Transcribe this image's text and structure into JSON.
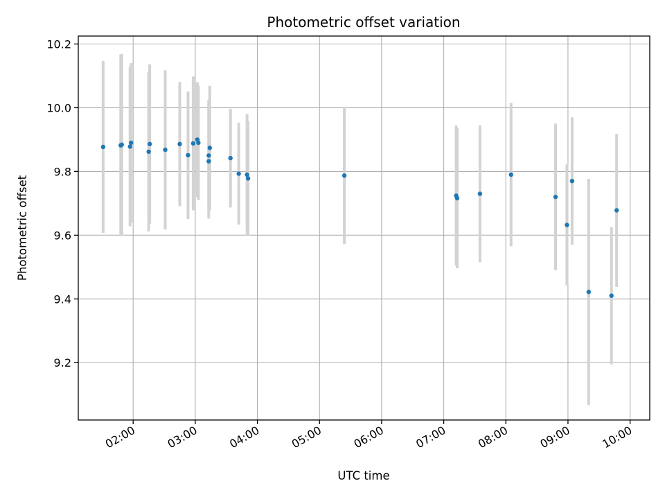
{
  "chart_data": {
    "type": "scatter",
    "title": "Photometric offset variation",
    "xlabel": "UTC time",
    "ylabel": "Photometric offset",
    "xlim": [
      "01:07",
      "10:19"
    ],
    "ylim": [
      9.02,
      10.225
    ],
    "x_ticks": [
      "02:00",
      "03:00",
      "04:00",
      "05:00",
      "06:00",
      "07:00",
      "08:00",
      "09:00",
      "10:00"
    ],
    "y_ticks": [
      9.2,
      9.4,
      9.6,
      9.8,
      10.0,
      10.2
    ],
    "y_tick_labels": [
      "9.2",
      "9.4",
      "9.6",
      "9.8",
      "10.0",
      "10.2"
    ],
    "grid": true,
    "point_color": "#1f77b4",
    "errorbar_color": "#d3d3d3",
    "points": [
      {
        "t": "01:31",
        "y": 9.877,
        "err": 0.27
      },
      {
        "t": "01:48",
        "y": 9.882,
        "err": 0.285
      },
      {
        "t": "01:49",
        "y": 9.884,
        "err": 0.285
      },
      {
        "t": "01:57",
        "y": 9.878,
        "err": 0.25
      },
      {
        "t": "01:58",
        "y": 9.89,
        "err": 0.25
      },
      {
        "t": "02:15",
        "y": 9.862,
        "err": 0.25
      },
      {
        "t": "02:16",
        "y": 9.886,
        "err": 0.25
      },
      {
        "t": "02:31",
        "y": 9.868,
        "err": 0.25
      },
      {
        "t": "02:45",
        "y": 9.886,
        "err": 0.195
      },
      {
        "t": "02:53",
        "y": 9.851,
        "err": 0.2
      },
      {
        "t": "02:58",
        "y": 9.888,
        "err": 0.21
      },
      {
        "t": "03:02",
        "y": 9.9,
        "err": 0.18
      },
      {
        "t": "03:03",
        "y": 9.89,
        "err": 0.18
      },
      {
        "t": "03:13",
        "y": 9.85,
        "err": 0.175
      },
      {
        "t": "03:13",
        "y": 9.832,
        "err": 0.18
      },
      {
        "t": "03:14",
        "y": 9.874,
        "err": 0.195
      },
      {
        "t": "03:34",
        "y": 9.842,
        "err": 0.155
      },
      {
        "t": "03:42",
        "y": 9.793,
        "err": 0.16
      },
      {
        "t": "03:50",
        "y": 9.79,
        "err": 0.19
      },
      {
        "t": "03:51",
        "y": 9.778,
        "err": 0.18
      },
      {
        "t": "05:24",
        "y": 9.787,
        "err": 0.215
      },
      {
        "t": "07:12",
        "y": 9.724,
        "err": 0.22
      },
      {
        "t": "07:13",
        "y": 9.716,
        "err": 0.22
      },
      {
        "t": "07:35",
        "y": 9.73,
        "err": 0.215
      },
      {
        "t": "08:05",
        "y": 9.79,
        "err": 0.225
      },
      {
        "t": "08:48",
        "y": 9.72,
        "err": 0.23
      },
      {
        "t": "08:59",
        "y": 9.632,
        "err": 0.19
      },
      {
        "t": "09:04",
        "y": 9.77,
        "err": 0.2
      },
      {
        "t": "09:20",
        "y": 9.422,
        "err": 0.355
      },
      {
        "t": "09:42",
        "y": 9.41,
        "err": 0.215
      },
      {
        "t": "09:47",
        "y": 9.678,
        "err": 0.24
      }
    ]
  }
}
